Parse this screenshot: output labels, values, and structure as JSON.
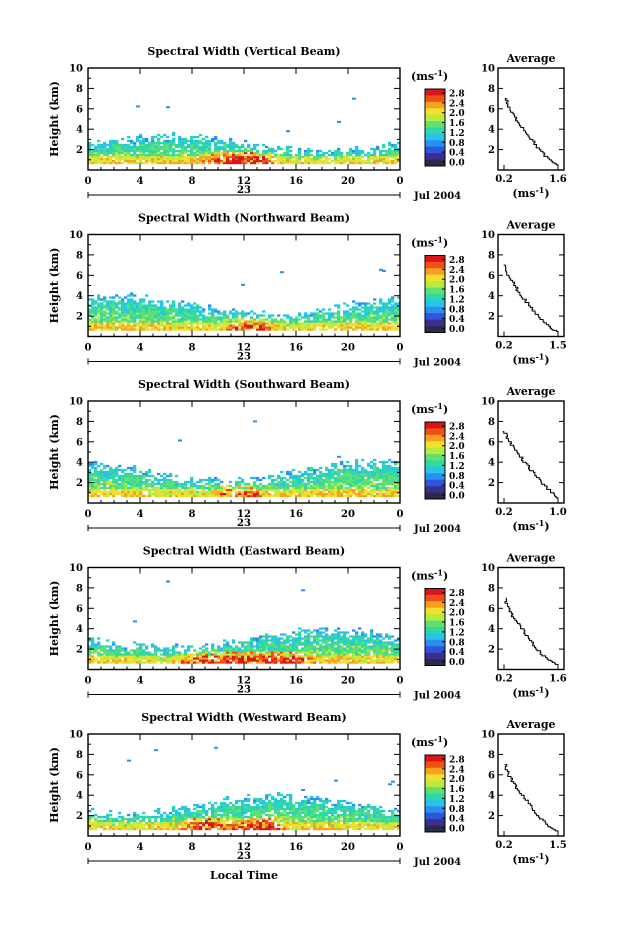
{
  "date_label": "Jul 2004",
  "day_label": "23",
  "xlabel_bottom": "Local Time",
  "colorbar": {
    "unit_base": "(ms",
    "unit_exp": "-1",
    "unit_close": ")",
    "ticks": [
      "0.0",
      "0.4",
      "0.8",
      "1.2",
      "1.6",
      "2.0",
      "2.4",
      "2.8"
    ]
  },
  "chart_data": [
    {
      "type": "heatmap",
      "title": "Spectral Width (Vertical Beam)",
      "xlabel": "",
      "ylabel": "Height (km)",
      "xlim": [
        0,
        24
      ],
      "ylim": [
        0,
        10
      ],
      "xticks": [
        "0",
        "4",
        "8",
        "12",
        "16",
        "20",
        "0"
      ],
      "yticks": [
        "2",
        "4",
        "6",
        "8",
        "10"
      ],
      "colorbar_range": [
        0.0,
        2.8
      ],
      "echo_top_km": 3.0,
      "hot_centers_hours": [
        10.5,
        12.5
      ],
      "average": {
        "type": "line",
        "title": "Average",
        "xlabel": "(ms-1)",
        "xticks": [
          "0.2",
          "1.6"
        ],
        "yticks": [
          "2",
          "4",
          "6",
          "8",
          "10"
        ],
        "x": [
          0.25,
          0.32,
          0.5,
          0.7,
          0.9,
          1.1,
          1.35,
          1.6
        ],
        "y": [
          7.0,
          6.0,
          5.0,
          4.0,
          3.0,
          2.0,
          1.0,
          0.4
        ]
      }
    },
    {
      "type": "heatmap",
      "title": "Spectral Width (Northward Beam)",
      "xlabel": "",
      "ylabel": "Height (km)",
      "xlim": [
        0,
        24
      ],
      "ylim": [
        0,
        10
      ],
      "xticks": [
        "0",
        "4",
        "8",
        "12",
        "16",
        "20",
        "0"
      ],
      "yticks": [
        "2",
        "4",
        "6",
        "8",
        "10"
      ],
      "colorbar_range": [
        0.0,
        2.8
      ],
      "echo_top_km": 3.5,
      "hot_centers_hours": [
        12.5
      ],
      "average": {
        "type": "line",
        "title": "Average",
        "xlabel": "(ms-1)",
        "xticks": [
          "0.2",
          "1.5"
        ],
        "yticks": [
          "2",
          "4",
          "6",
          "8",
          "10"
        ],
        "x": [
          0.22,
          0.3,
          0.45,
          0.6,
          0.8,
          1.0,
          1.25,
          1.5
        ],
        "y": [
          7.0,
          6.0,
          5.0,
          4.0,
          3.0,
          2.0,
          1.0,
          0.4
        ]
      }
    },
    {
      "type": "heatmap",
      "title": "Spectral Width (Southward Beam)",
      "xlabel": "",
      "ylabel": "Height (km)",
      "xlim": [
        0,
        24
      ],
      "ylim": [
        0,
        10
      ],
      "xticks": [
        "0",
        "4",
        "8",
        "12",
        "16",
        "20",
        "0"
      ],
      "yticks": [
        "2",
        "4",
        "6",
        "8",
        "10"
      ],
      "colorbar_range": [
        0.0,
        2.8
      ],
      "echo_top_km": 3.6,
      "hot_centers_hours": [
        11.5
      ],
      "average": {
        "type": "line",
        "title": "Average",
        "xlabel": "(ms-1)",
        "xticks": [
          "0.2",
          "1.0"
        ],
        "yticks": [
          "2",
          "4",
          "6",
          "8",
          "10"
        ],
        "x": [
          0.2,
          0.28,
          0.38,
          0.5,
          0.62,
          0.75,
          0.9,
          1.0
        ],
        "y": [
          7.0,
          6.0,
          5.0,
          4.0,
          3.0,
          2.0,
          1.0,
          0.4
        ]
      }
    },
    {
      "type": "heatmap",
      "title": "Spectral Width (Eastward Beam)",
      "xlabel": "",
      "ylabel": "Height (km)",
      "xlim": [
        0,
        24
      ],
      "ylim": [
        0,
        10
      ],
      "xticks": [
        "0",
        "4",
        "8",
        "12",
        "16",
        "20",
        "0"
      ],
      "yticks": [
        "2",
        "4",
        "6",
        "8",
        "10"
      ],
      "colorbar_range": [
        0.0,
        2.8
      ],
      "echo_top_km": 3.5,
      "hot_centers_hours": [
        9.0,
        12.0,
        15.0
      ],
      "average": {
        "type": "line",
        "title": "Average",
        "xlabel": "(ms-1)",
        "xticks": [
          "0.2",
          "1.6"
        ],
        "yticks": [
          "2",
          "4",
          "6",
          "8",
          "10"
        ],
        "x": [
          0.22,
          0.3,
          0.45,
          0.65,
          0.85,
          1.05,
          1.3,
          1.6
        ],
        "y": [
          7.0,
          6.0,
          5.0,
          4.0,
          3.0,
          2.0,
          1.0,
          0.4
        ]
      }
    },
    {
      "type": "heatmap",
      "title": "Spectral Width (Westward Beam)",
      "xlabel": "Local Time",
      "ylabel": "Height (km)",
      "xlim": [
        0,
        24
      ],
      "ylim": [
        0,
        10
      ],
      "xticks": [
        "0",
        "4",
        "8",
        "12",
        "16",
        "20",
        "0"
      ],
      "yticks": [
        "2",
        "4",
        "6",
        "8",
        "10"
      ],
      "colorbar_range": [
        0.0,
        2.8
      ],
      "echo_top_km": 3.5,
      "hot_centers_hours": [
        9.0,
        13.0
      ],
      "average": {
        "type": "line",
        "title": "Average",
        "xlabel": "(ms-1)",
        "xticks": [
          "0.2",
          "1.5"
        ],
        "yticks": [
          "2",
          "4",
          "6",
          "8",
          "10"
        ],
        "x": [
          0.22,
          0.3,
          0.45,
          0.62,
          0.82,
          1.0,
          1.25,
          1.5
        ],
        "y": [
          7.0,
          6.0,
          5.0,
          4.0,
          3.0,
          2.0,
          1.0,
          0.4
        ]
      }
    }
  ]
}
